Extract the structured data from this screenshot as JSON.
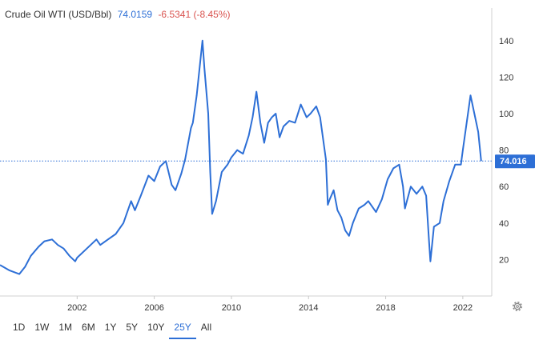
{
  "header": {
    "title": "Crude Oil WTI (USD/Bbl)",
    "price": "74.0159",
    "change": "-6.5341 (-8.45%)"
  },
  "price_badge": "74.016",
  "range_buttons": [
    "1D",
    "1W",
    "1M",
    "6M",
    "1Y",
    "5Y",
    "10Y",
    "25Y",
    "All"
  ],
  "active_range": "25Y",
  "colors": {
    "line": "#2d6fd6",
    "badge": "#2d6fd6",
    "change": "#d9534f",
    "grid": "#e6e6e6"
  },
  "icons": {
    "settings": "gear-icon"
  },
  "chart_data": {
    "type": "line",
    "series": [
      {
        "name": "",
        "x": [
          1998.0,
          1998.5,
          1999.0,
          1999.3,
          1999.6,
          2000.0,
          2000.3,
          2000.7,
          2001.0,
          2001.3,
          2001.6,
          2001.9,
          2002.0,
          2002.5,
          2003.0,
          2003.2,
          2003.6,
          2004.0,
          2004.4,
          2004.8,
          2005.0,
          2005.3,
          2005.7,
          2006.0,
          2006.3,
          2006.6,
          2006.9,
          2007.1,
          2007.4,
          2007.6,
          2007.9,
          2008.0,
          2008.2,
          2008.5,
          2008.6,
          2008.8,
          2008.9,
          2009.0,
          2009.2,
          2009.5,
          2009.8,
          2010.0,
          2010.3,
          2010.6,
          2010.9,
          2011.1,
          2011.3,
          2011.5,
          2011.7,
          2011.9,
          2012.1,
          2012.3,
          2012.5,
          2012.7,
          2013.0,
          2013.3,
          2013.6,
          2013.9,
          2014.1,
          2014.4,
          2014.6,
          2014.9,
          2015.0,
          2015.1,
          2015.3,
          2015.5,
          2015.7,
          2015.9,
          2016.1,
          2016.3,
          2016.6,
          2016.9,
          2017.1,
          2017.5,
          2017.8,
          2018.1,
          2018.4,
          2018.7,
          2018.9,
          2019.0,
          2019.3,
          2019.6,
          2019.9,
          2020.1,
          2020.25,
          2020.32,
          2020.5,
          2020.8,
          2021.0,
          2021.3,
          2021.6,
          2021.9,
          2022.0,
          2022.2,
          2022.4,
          2022.6,
          2022.8,
          2022.95
        ],
        "y": [
          17,
          14,
          12,
          16,
          22,
          27,
          30,
          31,
          28,
          26,
          22,
          19,
          21,
          26,
          31,
          28,
          31,
          34,
          40,
          52,
          47,
          55,
          66,
          63,
          71,
          74,
          61,
          58,
          67,
          75,
          92,
          95,
          110,
          140,
          125,
          100,
          68,
          45,
          52,
          68,
          72,
          76,
          80,
          78,
          88,
          98,
          112,
          95,
          84,
          95,
          98,
          100,
          87,
          93,
          96,
          95,
          105,
          98,
          100,
          104,
          98,
          75,
          50,
          53,
          58,
          47,
          43,
          36,
          33,
          40,
          48,
          50,
          52,
          46,
          53,
          64,
          70,
          72,
          60,
          48,
          60,
          56,
          60,
          55,
          30,
          19,
          38,
          40,
          52,
          63,
          72,
          72,
          80,
          95,
          110,
          100,
          90,
          74
        ]
      }
    ],
    "x_ticks": [
      2002,
      2006,
      2010,
      2014,
      2018,
      2022
    ],
    "y_ticks": [
      20,
      40,
      60,
      80,
      100,
      120,
      140
    ],
    "xlim": [
      1998.0,
      2023.5
    ],
    "ylim": [
      0,
      150
    ],
    "last_value": 74.016,
    "grid": false,
    "y_axis_side": "right"
  }
}
